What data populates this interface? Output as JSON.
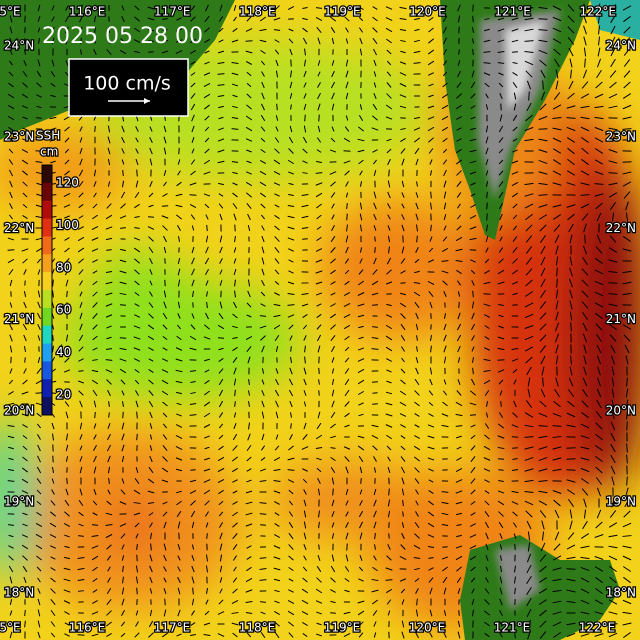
{
  "title": "2025 05 28 00",
  "scale_label": "100 cm/s",
  "colorbar": {
    "title": "SSH",
    "unit": "cm",
    "labels": [
      120,
      100,
      80,
      60,
      40,
      20
    ]
  },
  "lon_labels_top": [
    "5°E",
    "116°E",
    "117°E",
    "118°E",
    "119°E",
    "120°E",
    "121°E",
    "122°E"
  ],
  "lon_labels_bottom": [
    "5°E",
    "116°E",
    "117°E",
    "118°E",
    "119°E",
    "120°E",
    "121°E",
    "122°E"
  ],
  "lat_labels_left": [
    "24°N",
    "23°N",
    "22°N",
    "21°N",
    "20°N",
    "19°N",
    "18°N"
  ],
  "lat_labels_right": [
    "24°N",
    "23°N",
    "22°N",
    "21°N",
    "20°N",
    "19°N",
    "18°N"
  ]
}
